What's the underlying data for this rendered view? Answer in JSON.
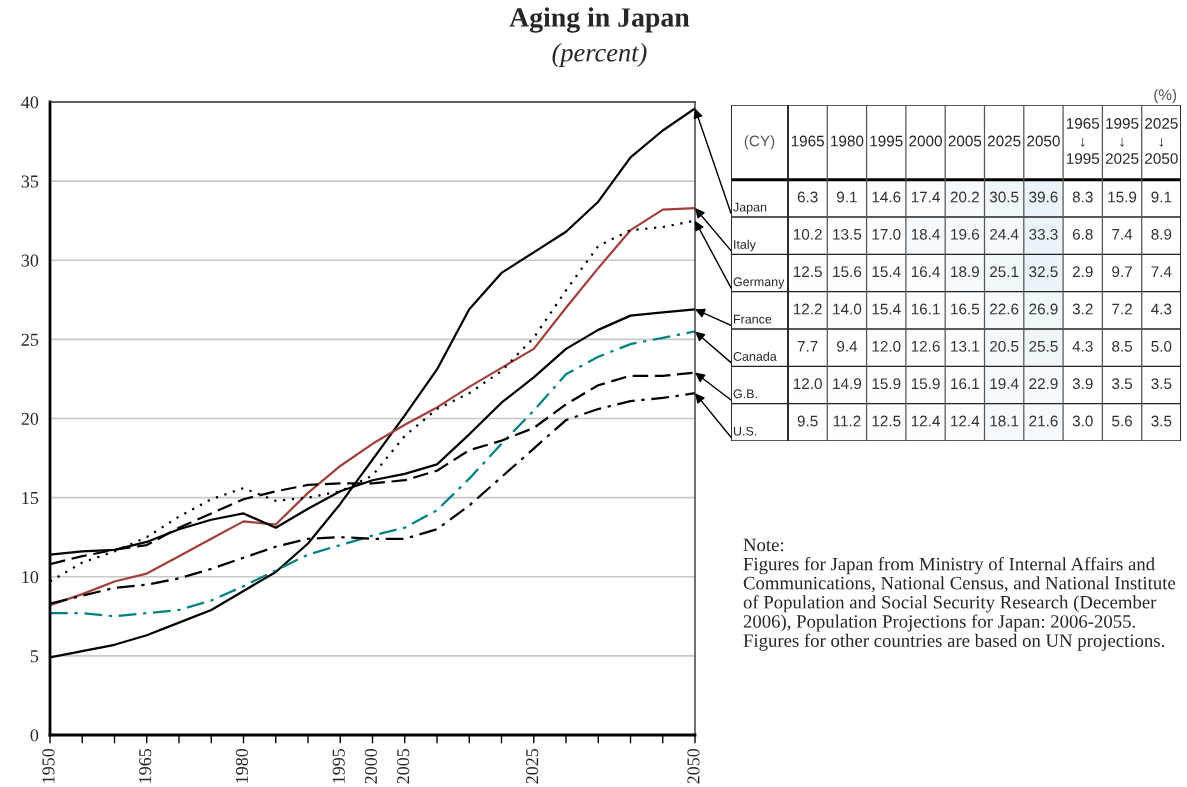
{
  "chart_data": [
    {
      "type": "line",
      "title": "Aging in Japan",
      "subtitle": "(percent)",
      "x": [
        1950,
        1955,
        1960,
        1965,
        1970,
        1975,
        1980,
        1985,
        1990,
        1995,
        2000,
        2005,
        2010,
        2015,
        2020,
        2025,
        2030,
        2035,
        2040,
        2045,
        2050
      ],
      "series": [
        {
          "color": "#000000",
          "line_style": "solid",
          "values": [
            4.9,
            5.3,
            5.7,
            6.3,
            7.1,
            7.9,
            9.1,
            10.3,
            12.1,
            14.6,
            17.4,
            20.2,
            23.1,
            26.9,
            29.2,
            30.5,
            31.8,
            33.7,
            36.5,
            38.2,
            39.6
          ]
        },
        {
          "color": "#a0403a",
          "line_style": "solid",
          "values": [
            8.2,
            8.9,
            9.7,
            10.2,
            11.3,
            12.4,
            13.5,
            13.3,
            15.3,
            17.0,
            18.4,
            19.6,
            20.7,
            22.0,
            23.2,
            24.4,
            27.0,
            29.5,
            31.9,
            33.2,
            33.3
          ]
        },
        {
          "color": "#000000",
          "line_style": "dotted",
          "values": [
            9.7,
            10.9,
            11.6,
            12.5,
            13.8,
            14.9,
            15.6,
            14.8,
            15.0,
            15.4,
            16.4,
            18.9,
            20.6,
            21.6,
            23.0,
            25.1,
            28.1,
            30.9,
            31.9,
            32.1,
            32.5
          ]
        },
        {
          "color": "#000000",
          "line_style": "solid",
          "values": [
            11.4,
            11.6,
            11.7,
            12.2,
            13.0,
            13.6,
            14.0,
            13.1,
            14.3,
            15.4,
            16.1,
            16.5,
            17.1,
            19.0,
            21.0,
            22.6,
            24.4,
            25.6,
            26.5,
            26.7,
            26.9
          ]
        },
        {
          "color": "#008080",
          "line_style": "dashdot",
          "values": [
            7.7,
            7.7,
            7.5,
            7.7,
            7.9,
            8.5,
            9.4,
            10.4,
            11.4,
            12.0,
            12.6,
            13.1,
            14.2,
            16.2,
            18.4,
            20.5,
            22.8,
            23.9,
            24.7,
            25.1,
            25.5
          ]
        },
        {
          "color": "#000000",
          "line_style": "dashed",
          "values": [
            10.8,
            11.3,
            11.7,
            12.0,
            13.1,
            14.0,
            14.9,
            15.4,
            15.8,
            15.9,
            15.9,
            16.1,
            16.7,
            18.0,
            18.6,
            19.4,
            20.9,
            22.1,
            22.7,
            22.7,
            22.9
          ]
        },
        {
          "color": "#000000",
          "line_style": "dashdot",
          "values": [
            8.3,
            8.8,
            9.3,
            9.5,
            9.9,
            10.5,
            11.2,
            11.9,
            12.4,
            12.5,
            12.4,
            12.4,
            13.0,
            14.5,
            16.3,
            18.1,
            19.9,
            20.6,
            21.1,
            21.3,
            21.6
          ]
        }
      ],
      "xlim": [
        1950,
        2050
      ],
      "xticks": [
        1950,
        {
          "value": 1955,
          "label": null
        },
        {
          "value": 1960,
          "label": null
        },
        1965,
        {
          "value": 1970,
          "label": null
        },
        {
          "value": 1975,
          "label": null
        },
        1980,
        {
          "value": 1985,
          "label": null
        },
        {
          "value": 1990,
          "label": null
        },
        1995,
        2000,
        2005,
        {
          "value": 2010,
          "label": null
        },
        {
          "value": 2015,
          "label": null
        },
        {
          "value": 2020,
          "label": null
        },
        2025,
        {
          "value": 2030,
          "label": null
        },
        {
          "value": 2035,
          "label": null
        },
        {
          "value": 2040,
          "label": null
        },
        {
          "value": 2045,
          "label": null
        },
        2050
      ],
      "ylim": [
        0,
        40
      ],
      "yticks": [
        0,
        5,
        10,
        15,
        20,
        25,
        30,
        35,
        40
      ],
      "grid": "y",
      "annotations": [
        "Note:",
        "Figures for Japan from Ministry of Internal Affairs and Communications, National Census, and National Institute of Population and Social Security Research (December 2006), Population Projections for Japan: 2006-2055.",
        "Figures for other countries are based on UN projections."
      ]
    },
    {
      "type": "heatmap",
      "xlabel": "(CY)",
      "categories": [
        "1965",
        "1980",
        "1995",
        "2000",
        "2005",
        "2025",
        "2050",
        "1965\n↓\n1995",
        "1995\n↓\n2025",
        "2025\n↓\n2050"
      ],
      "y_categories": [
        "Japan",
        "Italy",
        "Germany",
        "France",
        "Canada",
        "G.B.",
        "U.S."
      ],
      "cells": [
        [
          6.3,
          9.1,
          14.6,
          17.4,
          20.2,
          30.5,
          39.6,
          8.3,
          15.9,
          9.1
        ],
        [
          10.2,
          13.5,
          17.0,
          18.4,
          19.6,
          24.4,
          33.3,
          6.8,
          7.4,
          8.9
        ],
        [
          12.5,
          15.6,
          15.4,
          16.4,
          18.9,
          25.1,
          32.5,
          2.9,
          9.7,
          7.4
        ],
        [
          12.2,
          14.0,
          15.4,
          16.1,
          16.5,
          22.6,
          26.9,
          3.2,
          7.2,
          4.3
        ],
        [
          7.7,
          9.4,
          12.0,
          12.6,
          13.1,
          20.5,
          25.5,
          4.3,
          8.5,
          5.0
        ],
        [
          12.0,
          14.9,
          15.9,
          15.9,
          16.1,
          19.4,
          22.9,
          3.9,
          3.5,
          3.5
        ],
        [
          9.5,
          11.2,
          12.5,
          12.4,
          12.4,
          18.1,
          21.6,
          3.0,
          5.6,
          3.5
        ]
      ],
      "cell_labels": [
        [
          "6.3",
          "9.1",
          "14.6",
          "17.4",
          "20.2",
          "30.5",
          "39.6",
          "8.3",
          "15.9",
          "9.1"
        ],
        [
          "10.2",
          "13.5",
          "17.0",
          "18.4",
          "19.6",
          "24.4",
          "33.3",
          "6.8",
          "7.4",
          "8.9"
        ],
        [
          "12.5",
          "15.6",
          "15.4",
          "16.4",
          "18.9",
          "25.1",
          "32.5",
          "2.9",
          "9.7",
          "7.4"
        ],
        [
          "12.2",
          "14.0",
          "15.4",
          "16.1",
          "16.5",
          "22.6",
          "26.9",
          "3.2",
          "7.2",
          "4.3"
        ],
        [
          "7.7",
          "9.4",
          "12.0",
          "12.6",
          "13.1",
          "20.5",
          "25.5",
          "4.3",
          "8.5",
          "5.0"
        ],
        [
          "12.0",
          "14.9",
          "15.9",
          "15.9",
          "16.1",
          "19.4",
          "22.9",
          "3.9",
          "3.5",
          "3.5"
        ],
        [
          "9.5",
          "11.2",
          "12.5",
          "12.4",
          "12.4",
          "18.1",
          "21.6",
          "3.0",
          "5.6",
          "3.5"
        ]
      ],
      "annotations": [
        "(%)"
      ]
    }
  ]
}
